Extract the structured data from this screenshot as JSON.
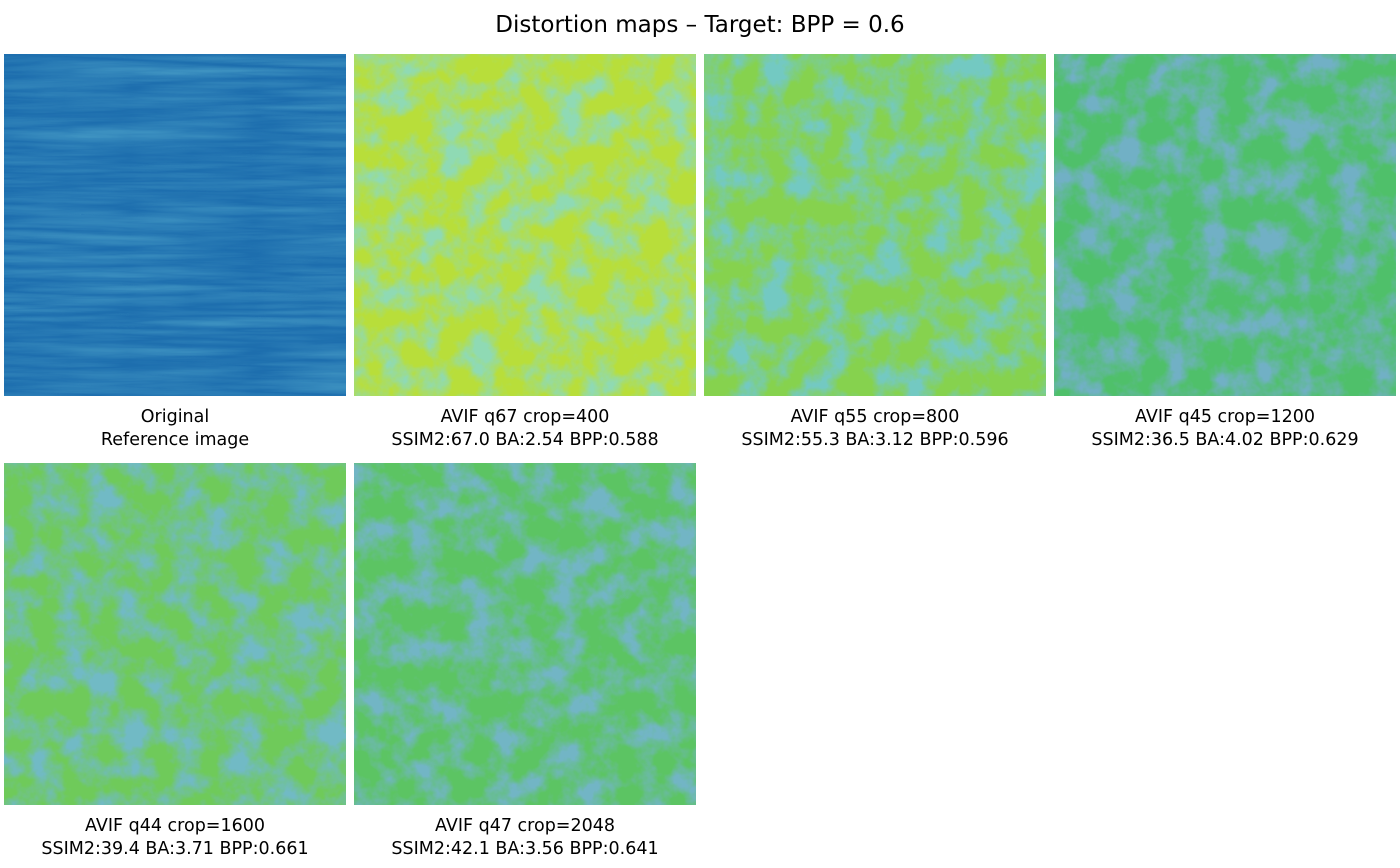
{
  "figure": {
    "title": "Distortion maps – Target: BPP = 0.6"
  },
  "panels": [
    {
      "line1": "Original",
      "line2": "Reference image",
      "kind": "reference-image",
      "light": "#1d6eae",
      "dark": "#0e4f8c"
    },
    {
      "line1": "AVIF q67 crop=400",
      "line2": "SSIM2:67.0 BA:2.54 BPP:0.588",
      "kind": "distortion-map",
      "light": "#b8de3a",
      "dark": "#46b374"
    },
    {
      "line1": "AVIF q55 crop=800",
      "line2": "SSIM2:55.3 BA:3.12 BPP:0.596",
      "kind": "distortion-map",
      "light": "#86d24e",
      "dark": "#2c958a"
    },
    {
      "line1": "AVIF q45 crop=1200",
      "line2": "SSIM2:36.5 BA:4.02 BPP:0.629",
      "kind": "distortion-map",
      "light": "#4fc06a",
      "dark": "#2a6f8e"
    },
    {
      "line1": "AVIF q44 crop=1600",
      "line2": "SSIM2:39.4 BA:3.71 BPP:0.661",
      "kind": "distortion-map",
      "light": "#6fca5a",
      "dark": "#2a7d8e"
    },
    {
      "line1": "AVIF q47 crop=2048",
      "line2": "SSIM2:42.1 BA:3.56 BPP:0.641",
      "kind": "distortion-map",
      "light": "#5cc463",
      "dark": "#2b768e"
    }
  ]
}
